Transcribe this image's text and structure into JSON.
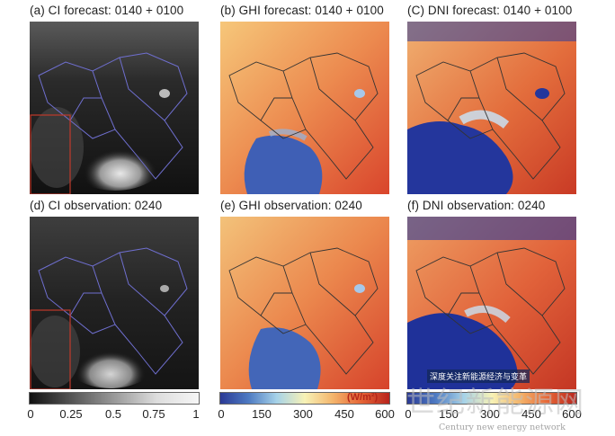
{
  "panels": [
    {
      "id": "a",
      "title": "(a) CI forecast: 0140 + 0100",
      "kind": "ci"
    },
    {
      "id": "b",
      "title": "(b) GHI forecast: 0140 + 0100",
      "kind": "ghi"
    },
    {
      "id": "c",
      "title": "(C) DNI forecast: 0140 + 0100",
      "kind": "dni"
    },
    {
      "id": "d",
      "title": "(d) CI observation: 0240",
      "kind": "ci"
    },
    {
      "id": "e",
      "title": "(e) GHI observation: 0240",
      "kind": "ghi"
    },
    {
      "id": "f",
      "title": "(f) DNI observation: 0240",
      "kind": "dni"
    }
  ],
  "colorbars": {
    "ci": {
      "ticks": [
        "0",
        "0.25",
        "0.5",
        "0.75",
        "1"
      ]
    },
    "ghi": {
      "ticks": [
        "0",
        "150",
        "300",
        "450",
        "600"
      ],
      "unit": "(W/m²)"
    },
    "dni": {
      "ticks": [
        "0",
        "150",
        "300",
        "450",
        "600"
      ]
    }
  },
  "watermark": {
    "tag": "深度关注新能源经济与变革",
    "brand": "世纪新能源网",
    "brand_sub": "Century new energy network"
  },
  "colors": {
    "ci_dark": "#1a1a1a",
    "ci_light": "#d8d8d8",
    "warm": "#e2643a",
    "cool": "#2a3c9e",
    "boundary_ci": "#6f6fd0",
    "boundary_map": "#333333",
    "subregion": "#c0392b"
  }
}
